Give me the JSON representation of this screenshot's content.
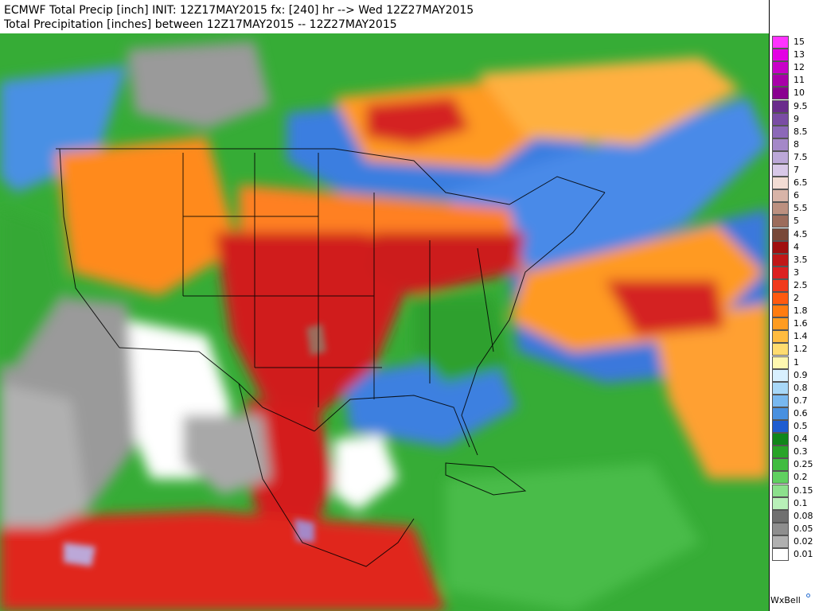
{
  "header": {
    "title_line1": "ECMWF Total Precip [inch] INIT: 12Z17MAY2015 fx: [240] hr --> Wed 12Z27MAY2015",
    "title_line2": "Total Precipitation [inches] between 12Z17MAY2015 -- 12Z27MAY2015"
  },
  "legend": {
    "items": [
      {
        "label": "15",
        "color": "#ff33ff"
      },
      {
        "label": "13",
        "color": "#e400e4"
      },
      {
        "label": "12",
        "color": "#c800c8"
      },
      {
        "label": "11",
        "color": "#a800a8"
      },
      {
        "label": "10",
        "color": "#8a0090"
      },
      {
        "label": "9.5",
        "color": "#6a2c8c"
      },
      {
        "label": "9",
        "color": "#7a4ca4"
      },
      {
        "label": "8.5",
        "color": "#8c68b8"
      },
      {
        "label": "8",
        "color": "#a488c8"
      },
      {
        "label": "7.5",
        "color": "#bca8d8"
      },
      {
        "label": "7",
        "color": "#d8c8e8"
      },
      {
        "label": "6.5",
        "color": "#f2dcd4"
      },
      {
        "label": "6",
        "color": "#d8b4a8"
      },
      {
        "label": "5.5",
        "color": "#bc9080"
      },
      {
        "label": "5",
        "color": "#9c6c5c"
      },
      {
        "label": "4.5",
        "color": "#784838"
      },
      {
        "label": "4",
        "color": "#a01010"
      },
      {
        "label": "3.5",
        "color": "#c01818"
      },
      {
        "label": "3",
        "color": "#dc2020"
      },
      {
        "label": "2.5",
        "color": "#f03a1c"
      },
      {
        "label": "2",
        "color": "#ff5a10"
      },
      {
        "label": "1.8",
        "color": "#ff7c10"
      },
      {
        "label": "1.6",
        "color": "#ff9c20"
      },
      {
        "label": "1.4",
        "color": "#ffbc40"
      },
      {
        "label": "1.2",
        "color": "#ffdc70"
      },
      {
        "label": "1",
        "color": "#fff8b0"
      },
      {
        "label": "0.9",
        "color": "#d8f0ff"
      },
      {
        "label": "0.8",
        "color": "#a8d8f8"
      },
      {
        "label": "0.7",
        "color": "#78b8f0"
      },
      {
        "label": "0.6",
        "color": "#4890e0"
      },
      {
        "label": "0.5",
        "color": "#1e5cd0"
      },
      {
        "label": "0.4",
        "color": "#10861a"
      },
      {
        "label": "0.3",
        "color": "#28a428"
      },
      {
        "label": "0.25",
        "color": "#40bc40"
      },
      {
        "label": "0.2",
        "color": "#60d060"
      },
      {
        "label": "0.15",
        "color": "#8ce08c"
      },
      {
        "label": "0.1",
        "color": "#b8f0b8"
      },
      {
        "label": "0.08",
        "color": "#707070"
      },
      {
        "label": "0.05",
        "color": "#8e8e8e"
      },
      {
        "label": "0.02",
        "color": "#b0b0b0"
      },
      {
        "label": "0.01",
        "color": "#ffffff"
      }
    ]
  },
  "credit": {
    "text": "WxBell"
  },
  "map_colors": {
    "ocean_light": "#b8f0b8",
    "precip_green": "#30a830",
    "precip_blue": "#1e5cd0",
    "precip_orange": "#ff8c1a",
    "precip_red": "#dc2020",
    "dry_white": "#ffffff",
    "dry_gray": "#9a9a9a"
  }
}
